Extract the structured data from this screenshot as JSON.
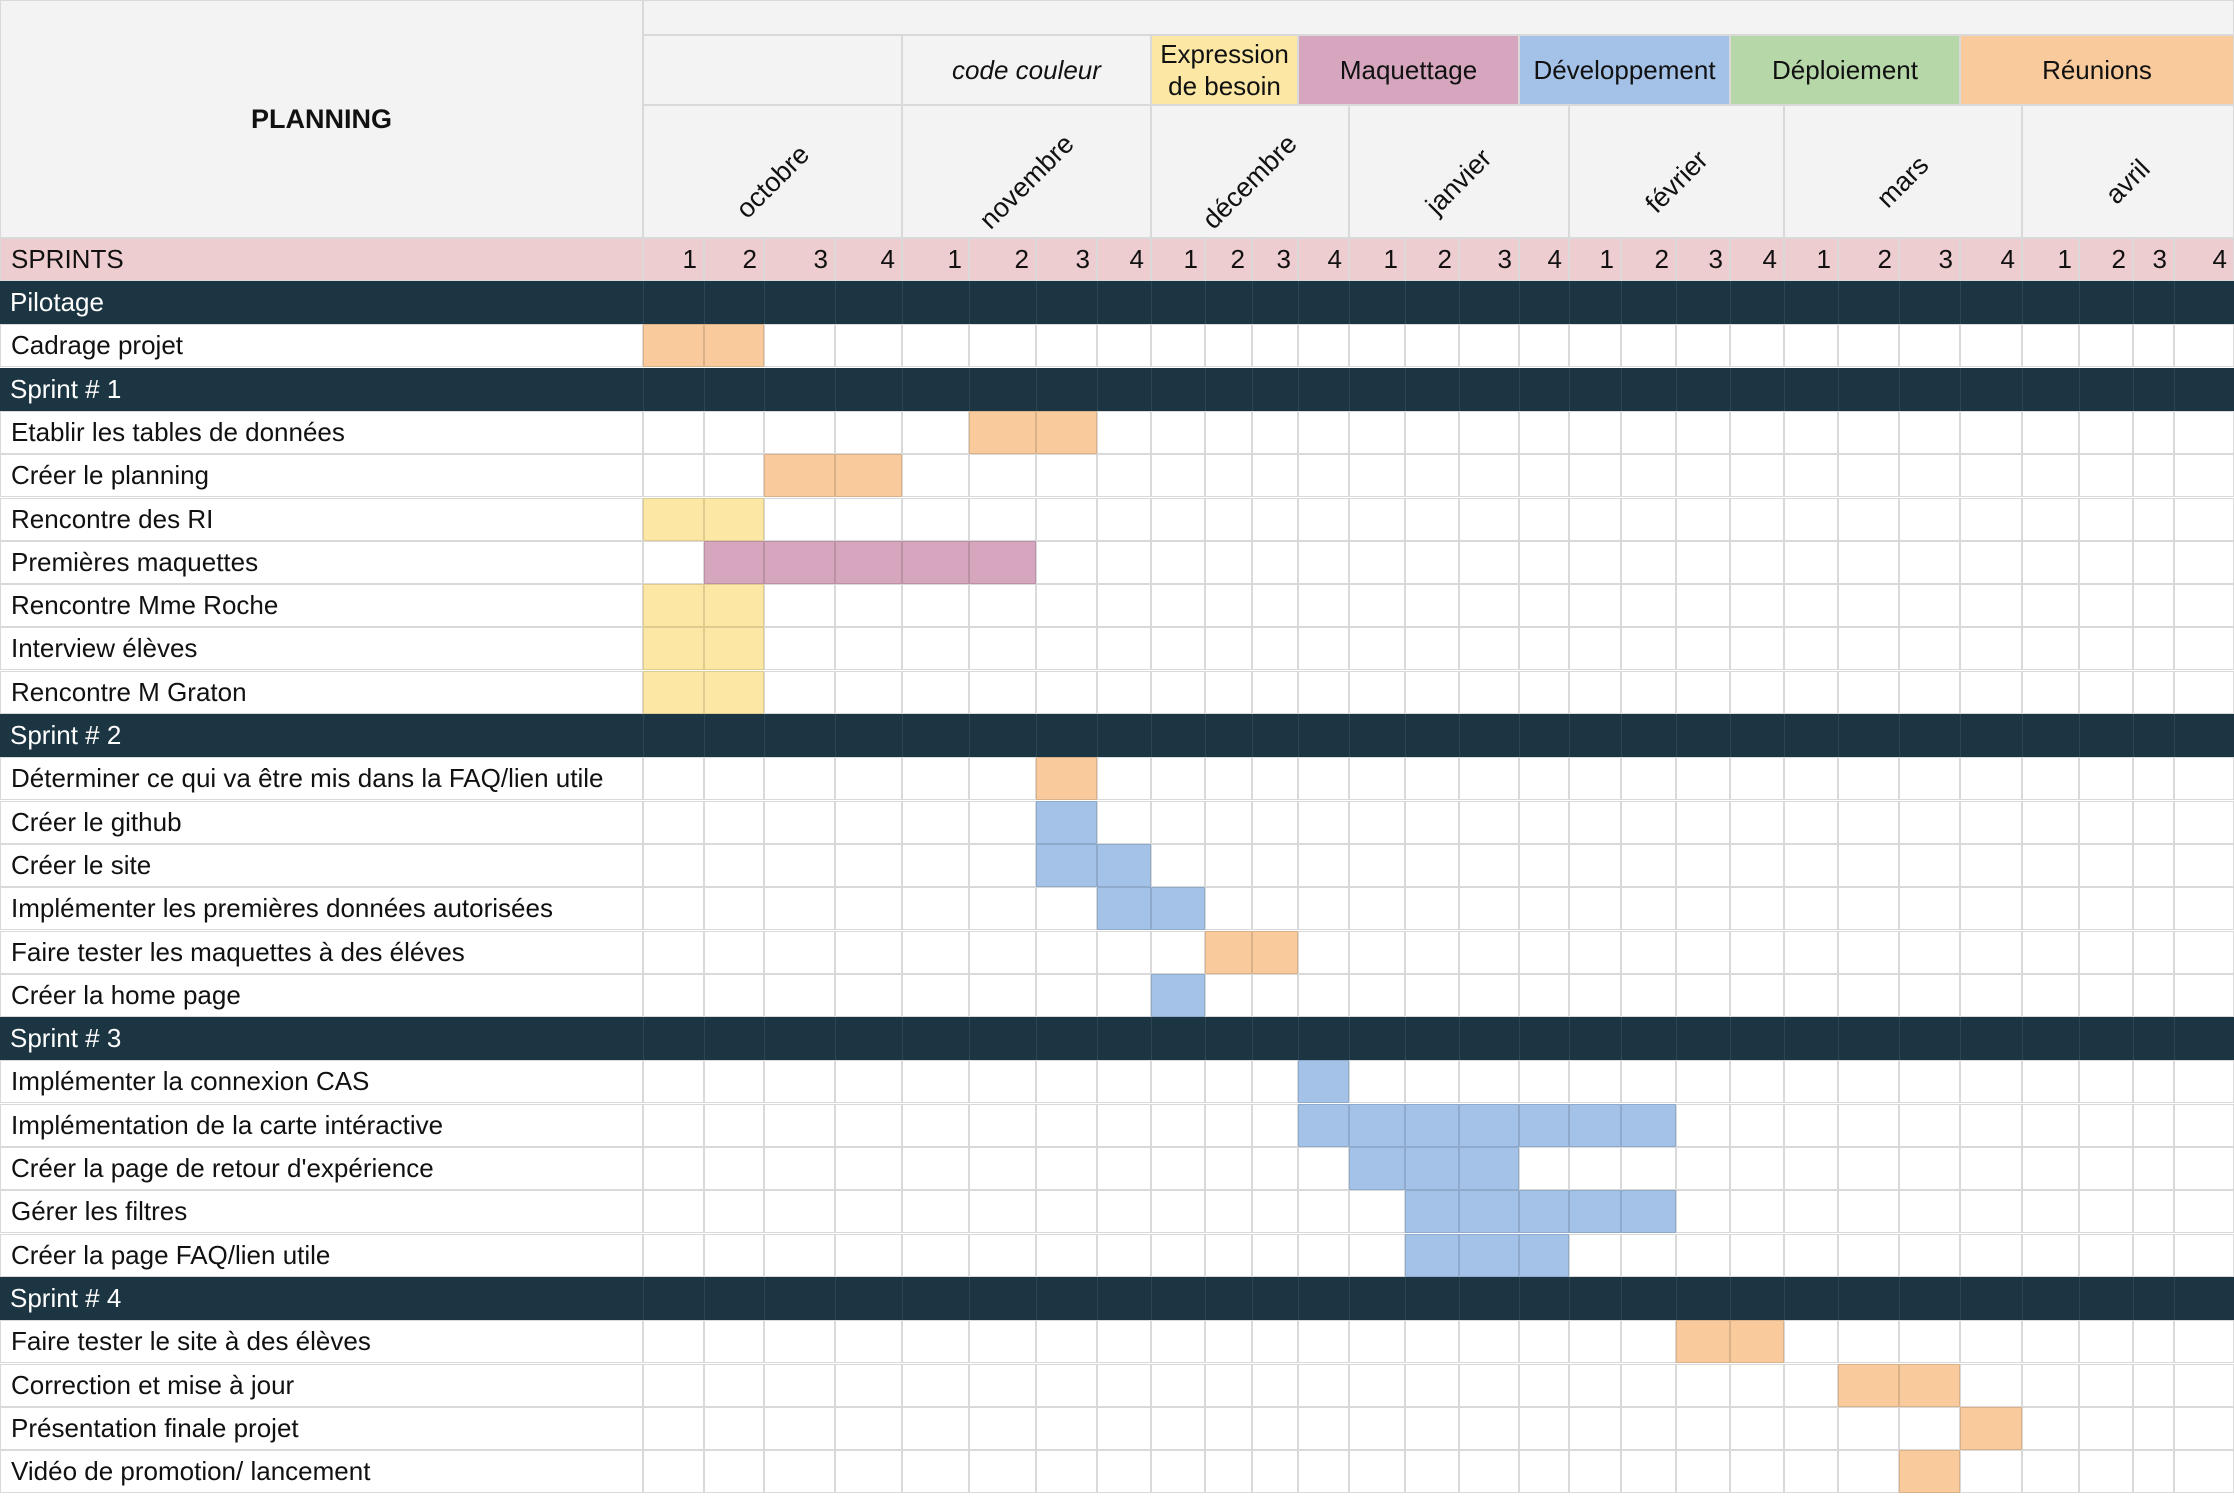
{
  "title": "PLANNING",
  "legend": {
    "label": "code couleur",
    "items": [
      {
        "key": "expression",
        "label": "Expression de besoin",
        "color": "#fce8a4"
      },
      {
        "key": "maquettage",
        "label": "Maquettage",
        "color": "#d5a6bd"
      },
      {
        "key": "developpement",
        "label": "Développement",
        "color": "#a4c2e8"
      },
      {
        "key": "deploiement",
        "label": "Déploiement",
        "color": "#b6d7a8"
      },
      {
        "key": "reunions",
        "label": "Réunions",
        "color": "#f9cb9c"
      }
    ]
  },
  "months": [
    "octobre",
    "novembre",
    "décembre",
    "janvier",
    "février",
    "mars",
    "avril"
  ],
  "sprints_label": "SPRINTS",
  "week_labels": [
    "1",
    "2",
    "3",
    "4"
  ],
  "colors": {
    "section_bg": "#1c3542",
    "sprints_bg": "#eecdd0",
    "header_bg": "#f3f3f3",
    "grid": "#d9d9d9",
    "reunions": "#f9cb9c",
    "expression": "#fce8a4",
    "maquettage": "#d5a6bd",
    "developpement": "#a4c2e8"
  },
  "chart_data": {
    "type": "table",
    "columns": "28 weekly columns: weeks 1-4 of each month from octobre to avril (index 0 = octobre week 1)",
    "rows": [
      {
        "kind": "section",
        "label": "Pilotage"
      },
      {
        "kind": "task",
        "label": "Cadrage projet",
        "fill": [
          {
            "start": 0,
            "end": 1,
            "category": "reunions"
          }
        ]
      },
      {
        "kind": "section",
        "label": "Sprint # 1"
      },
      {
        "kind": "task",
        "label": "Etablir les tables de données",
        "fill": [
          {
            "start": 5,
            "end": 6,
            "category": "reunions"
          }
        ]
      },
      {
        "kind": "task",
        "label": "Créer le planning",
        "fill": [
          {
            "start": 2,
            "end": 3,
            "category": "reunions"
          }
        ]
      },
      {
        "kind": "task",
        "label": "Rencontre des RI",
        "fill": [
          {
            "start": 0,
            "end": 1,
            "category": "expression"
          }
        ]
      },
      {
        "kind": "task",
        "label": "Premières maquettes",
        "fill": [
          {
            "start": 1,
            "end": 5,
            "category": "maquettage"
          }
        ]
      },
      {
        "kind": "task",
        "label": "Rencontre Mme Roche",
        "fill": [
          {
            "start": 0,
            "end": 1,
            "category": "expression"
          }
        ]
      },
      {
        "kind": "task",
        "label": "Interview élèves",
        "fill": [
          {
            "start": 0,
            "end": 1,
            "category": "expression"
          }
        ]
      },
      {
        "kind": "task",
        "label": "Rencontre M Graton",
        "fill": [
          {
            "start": 0,
            "end": 1,
            "category": "expression"
          }
        ]
      },
      {
        "kind": "section",
        "label": "Sprint # 2"
      },
      {
        "kind": "task",
        "label": "Déterminer ce qui va être mis dans la FAQ/lien utile",
        "fill": [
          {
            "start": 6,
            "end": 6,
            "category": "reunions"
          }
        ]
      },
      {
        "kind": "task",
        "label": "Créer le github",
        "fill": [
          {
            "start": 6,
            "end": 6,
            "category": "developpement"
          }
        ]
      },
      {
        "kind": "task",
        "label": "Créer le site",
        "fill": [
          {
            "start": 6,
            "end": 7,
            "category": "developpement"
          }
        ]
      },
      {
        "kind": "task",
        "label": "Implémenter les premières données autorisées",
        "fill": [
          {
            "start": 7,
            "end": 8,
            "category": "developpement"
          }
        ]
      },
      {
        "kind": "task",
        "label": "Faire tester les maquettes à des éléves",
        "fill": [
          {
            "start": 9,
            "end": 10,
            "category": "reunions"
          }
        ]
      },
      {
        "kind": "task",
        "label": "Créer la home page",
        "fill": [
          {
            "start": 8,
            "end": 8,
            "category": "developpement"
          }
        ]
      },
      {
        "kind": "section",
        "label": "Sprint # 3"
      },
      {
        "kind": "task",
        "label": "Implémenter la connexion CAS",
        "fill": [
          {
            "start": 11,
            "end": 11,
            "category": "developpement"
          }
        ]
      },
      {
        "kind": "task",
        "label": "Implémentation de la carte intéractive",
        "fill": [
          {
            "start": 11,
            "end": 17,
            "category": "developpement"
          }
        ]
      },
      {
        "kind": "task",
        "label": "Créer la page de retour d'expérience",
        "fill": [
          {
            "start": 12,
            "end": 14,
            "category": "developpement"
          }
        ]
      },
      {
        "kind": "task",
        "label": "Gérer les filtres",
        "fill": [
          {
            "start": 13,
            "end": 17,
            "category": "developpement"
          }
        ]
      },
      {
        "kind": "task",
        "label": "Créer la page FAQ/lien utile",
        "fill": [
          {
            "start": 13,
            "end": 15,
            "category": "developpement"
          }
        ]
      },
      {
        "kind": "section",
        "label": "Sprint # 4"
      },
      {
        "kind": "task",
        "label": "Faire tester le site à des élèves",
        "fill": [
          {
            "start": 18,
            "end": 19,
            "category": "reunions"
          }
        ]
      },
      {
        "kind": "task",
        "label": "Correction et mise à jour",
        "fill": [
          {
            "start": 21,
            "end": 22,
            "category": "reunions"
          }
        ]
      },
      {
        "kind": "task",
        "label": "Présentation finale projet",
        "fill": [
          {
            "start": 23,
            "end": 23,
            "category": "reunions"
          }
        ]
      },
      {
        "kind": "task",
        "label": "Vidéo de promotion/ lancement",
        "fill": [
          {
            "start": 22,
            "end": 22,
            "category": "reunions"
          }
        ]
      }
    ]
  }
}
